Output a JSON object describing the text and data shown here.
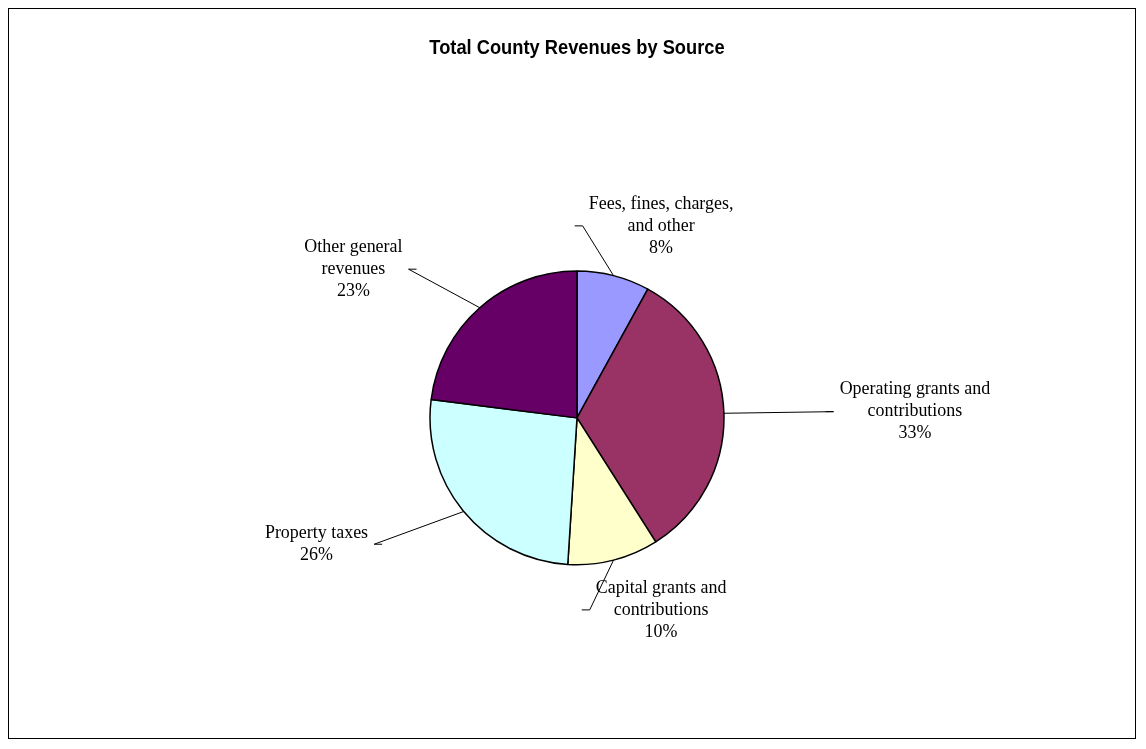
{
  "chart_data": {
    "type": "pie",
    "title": "Total County Revenues by Source",
    "categories": [
      "Fees, fines, charges, and other",
      "Operating grants and contributions",
      "Capital grants and contributions",
      "Property taxes",
      "Other general revenues"
    ],
    "values": [
      8,
      33,
      10,
      26,
      23
    ],
    "value_labels": [
      "8%",
      "33%",
      "10%",
      "26%",
      "23%"
    ],
    "colors": [
      "#9999ff",
      "#993366",
      "#ffffcc",
      "#ccffff",
      "#660066"
    ],
    "legend": false
  }
}
